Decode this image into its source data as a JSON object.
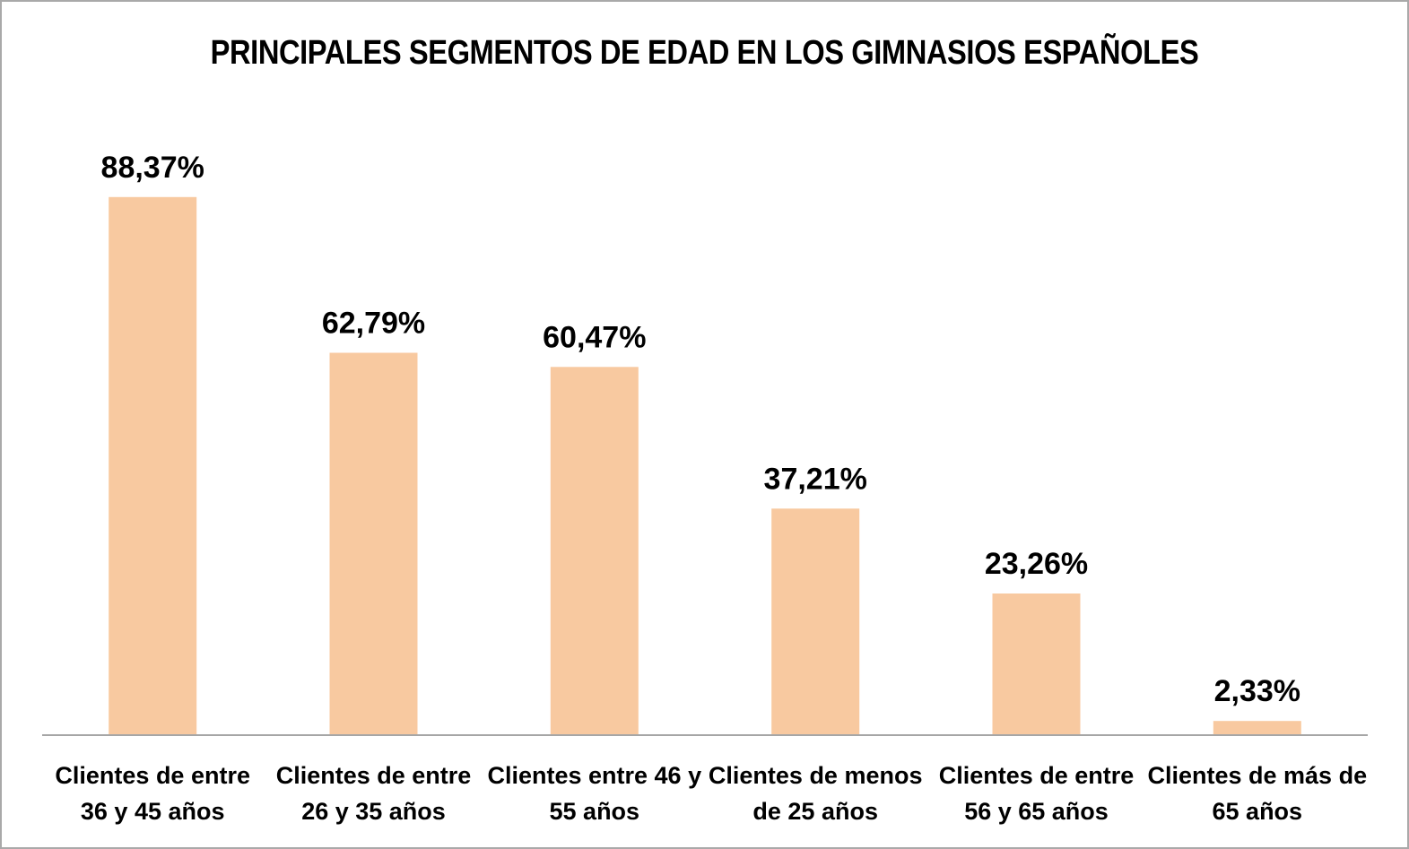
{
  "chart_data": {
    "type": "bar",
    "title": "PRINCIPALES SEGMENTOS DE EDAD EN LOS GIMNASIOS ESPAÑOLES",
    "categories": [
      [
        "Clientes de entre",
        "36 y 45 años"
      ],
      [
        "Clientes de entre",
        "26 y 35 años"
      ],
      [
        "Clientes entre 46 y",
        "55 años"
      ],
      [
        "Clientes de menos",
        "de 25 años"
      ],
      [
        "Clientes de entre",
        "56 y 65 años"
      ],
      [
        "Clientes de más de",
        "65 años"
      ]
    ],
    "values": [
      88.37,
      62.79,
      60.47,
      37.21,
      23.26,
      2.33
    ],
    "value_labels": [
      "88,37%",
      "62,79%",
      "60,47%",
      "37,21%",
      "23,26%",
      "2,33%"
    ],
    "xlabel": "",
    "ylabel": "",
    "ylim": [
      0,
      100
    ],
    "grid": false,
    "legend": "none",
    "bar_color": "#f8c9a0",
    "axis_color": "#a6a6a6"
  }
}
